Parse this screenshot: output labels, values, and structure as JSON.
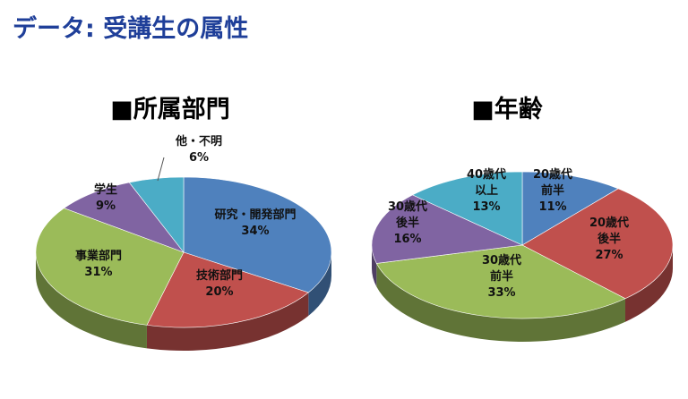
{
  "title": "データ: 受講生の属性",
  "chart_data": [
    {
      "type": "pie3d",
      "title": "■所属部門",
      "categories": [
        "研究・開発部門",
        "技術部門",
        "事業部門",
        "学生",
        "他・不明"
      ],
      "values": [
        34,
        20,
        31,
        9,
        6
      ],
      "value_labels": [
        "34%",
        "20%",
        "31%",
        "9%",
        "6%"
      ],
      "colors": [
        "#4f81bd",
        "#c0504d",
        "#9bbb59",
        "#8064a2",
        "#4bacc6"
      ]
    },
    {
      "type": "pie3d",
      "title": "■年齢",
      "categories": [
        "20歳代\n前半",
        "20歳代\n後半",
        "30歳代\n前半",
        "30歳代\n後半",
        "40歳代\n以上"
      ],
      "values": [
        11,
        27,
        33,
        16,
        13
      ],
      "value_labels": [
        "11%",
        "27%",
        "33%",
        "16%",
        "13%"
      ],
      "colors": [
        "#4f81bd",
        "#c0504d",
        "#9bbb59",
        "#8064a2",
        "#4bacc6"
      ]
    }
  ]
}
